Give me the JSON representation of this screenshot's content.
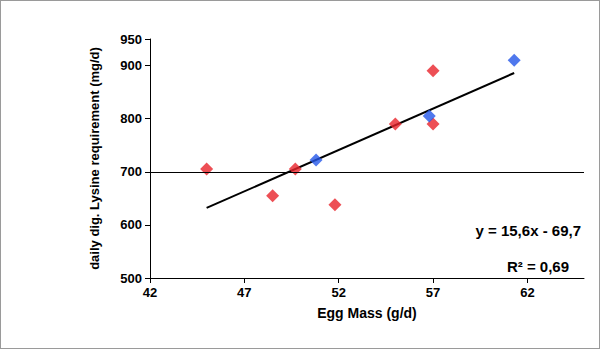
{
  "chart_data": {
    "type": "scatter",
    "xlabel": "Egg Mass (g/d)",
    "ylabel": "daily dig. Lysine requirement (mg/d)",
    "xlim": [
      42,
      65
    ],
    "xticks": [
      42,
      47,
      52,
      57,
      62
    ],
    "ylim": [
      500,
      950
    ],
    "yticks": [
      500,
      600,
      700,
      800,
      900
    ],
    "grid": false,
    "hline": 700,
    "annotations": [
      "y = 15,6x - 69,7",
      "R² = 0,69"
    ],
    "series": [
      {
        "type": "scatter",
        "color": "#e8232b",
        "marker": "diamond",
        "x": [
          45.0,
          48.5,
          49.7,
          51.8,
          55.0,
          57.0,
          57.0
        ],
        "values": [
          705,
          655,
          705,
          638,
          790,
          890,
          790
        ]
      },
      {
        "type": "scatter",
        "color": "#2356e8",
        "marker": "diamond",
        "x": [
          50.8,
          56.8,
          61.3
        ],
        "values": [
          722,
          805,
          910
        ]
      },
      {
        "type": "line",
        "color": "#000000",
        "marker": "none",
        "line_style": "solid",
        "x": [
          45.0,
          61.3
        ],
        "values": [
          632,
          886
        ]
      }
    ]
  }
}
